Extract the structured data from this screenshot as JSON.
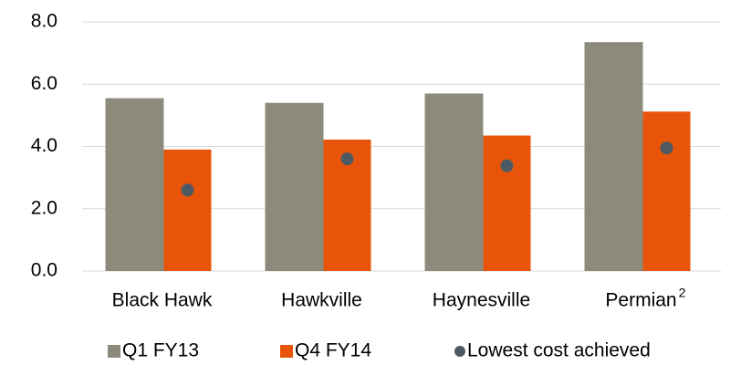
{
  "chart_data": {
    "type": "bar",
    "categories": [
      "Black Hawk",
      "Hawkville",
      "Haynesville",
      "Permian"
    ],
    "footnotes": [
      null,
      null,
      null,
      "2"
    ],
    "series": [
      {
        "name": "Q1 FY13",
        "color": "#8c8b7b",
        "style": "bar",
        "values": [
          5.55,
          5.4,
          5.7,
          7.35
        ]
      },
      {
        "name": "Q4 FY14",
        "color": "#e8550a",
        "style": "bar",
        "values": [
          3.9,
          4.22,
          4.35,
          5.12
        ]
      },
      {
        "name": "Lowest cost achieved",
        "color": "#4d5a64",
        "style": "point",
        "values": [
          2.6,
          3.6,
          3.38,
          3.95
        ]
      }
    ],
    "ylim": [
      0,
      8
    ],
    "yticks": [
      {
        "value": 0,
        "label": "0.0"
      },
      {
        "value": 2,
        "label": "2.0"
      },
      {
        "value": 4,
        "label": "4.0"
      },
      {
        "value": 6,
        "label": "6.0"
      },
      {
        "value": 8,
        "label": "8.0"
      }
    ],
    "grid": true,
    "legend": "bottom"
  }
}
